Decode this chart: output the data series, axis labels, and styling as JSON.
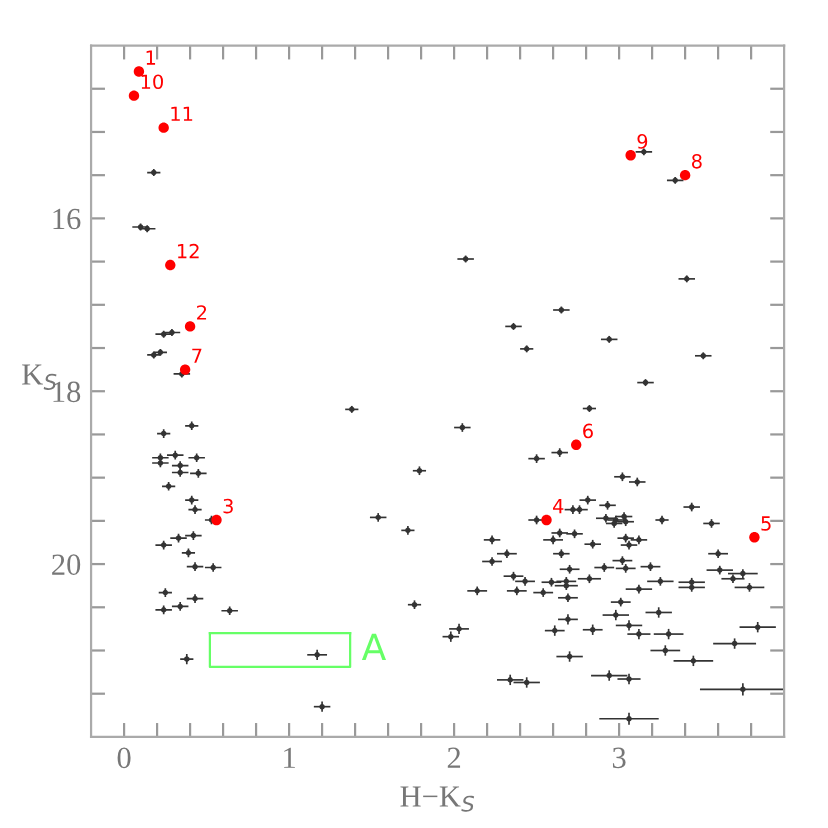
{
  "chart_data": {
    "type": "scatter",
    "xlabel": "H−K$_{S}$",
    "ylabel": "K$_{S}$",
    "xlim": [
      -0.2,
      4.0
    ],
    "ylim": [
      22,
      14
    ],
    "xticks": [
      {
        "value": 0,
        "label": "0"
      },
      {
        "value": 0.2,
        "label": null
      },
      {
        "value": 0.4,
        "label": null
      },
      {
        "value": 0.6,
        "label": null
      },
      {
        "value": 0.8,
        "label": null
      },
      {
        "value": 1,
        "label": "1"
      },
      {
        "value": 1.2,
        "label": null
      },
      {
        "value": 1.4,
        "label": null
      },
      {
        "value": 1.6,
        "label": null
      },
      {
        "value": 1.8,
        "label": null
      },
      {
        "value": 2,
        "label": "2"
      },
      {
        "value": 2.2,
        "label": null
      },
      {
        "value": 2.4,
        "label": null
      },
      {
        "value": 2.6,
        "label": null
      },
      {
        "value": 2.8,
        "label": null
      },
      {
        "value": 3,
        "label": "3"
      },
      {
        "value": 3.2,
        "label": null
      },
      {
        "value": 3.4,
        "label": null
      },
      {
        "value": 3.6,
        "label": null
      },
      {
        "value": 3.8,
        "label": null
      }
    ],
    "yticks": [
      {
        "value": 14.5,
        "label": null
      },
      {
        "value": 15,
        "label": null
      },
      {
        "value": 15.5,
        "label": null
      },
      {
        "value": 16,
        "label": "16"
      },
      {
        "value": 16.5,
        "label": null
      },
      {
        "value": 17,
        "label": null
      },
      {
        "value": 17.5,
        "label": null
      },
      {
        "value": 18,
        "label": "18"
      },
      {
        "value": 18.5,
        "label": null
      },
      {
        "value": 19,
        "label": null
      },
      {
        "value": 19.5,
        "label": null
      },
      {
        "value": 20,
        "label": "20"
      },
      {
        "value": 20.5,
        "label": null
      },
      {
        "value": 21,
        "label": null
      },
      {
        "value": 21.5,
        "label": null
      }
    ],
    "grid": false,
    "legend": false,
    "series": [
      {
        "color": "#333333",
        "marker": "circle",
        "x": [
          0.18,
          0.1,
          0.14,
          0.24,
          0.29,
          0.18,
          0.22,
          0.35,
          1.38,
          3.15,
          3.34,
          2.07,
          3.41,
          2.65,
          2.36,
          2.44,
          2.94,
          3.51,
          3.16,
          2.82,
          0.41,
          0.24,
          0.22,
          0.22,
          0.31,
          0.44,
          0.34,
          0.34,
          0.45,
          0.27,
          0.41,
          0.43,
          0.53,
          0.24,
          0.33,
          0.42,
          0.39,
          0.43,
          0.54,
          0.25,
          0.24,
          0.34,
          0.43,
          0.64,
          0.38,
          1.17,
          1.2,
          1.54,
          1.72,
          1.79,
          1.76,
          2.05,
          2.5,
          2.64,
          3.02,
          3.11,
          2.81,
          2.76,
          2.72,
          2.93,
          2.92,
          2.98,
          3.03,
          2.97,
          3.04,
          3.26,
          3.44,
          3.56,
          2.5,
          2.64,
          2.73,
          2.6,
          2.23,
          3.04,
          3.12,
          3.06,
          2.84,
          2.32,
          2.23,
          2.65,
          3.6,
          3.02,
          2.7,
          2.91,
          3.04,
          3.19,
          3.61,
          3.75,
          2.36,
          2.43,
          2.38,
          2.54,
          2.68,
          2.68,
          2.59,
          2.82,
          3.25,
          3.44,
          3.44,
          3.69,
          3.79,
          3.12,
          2.69,
          2.14,
          3.01,
          2.98,
          3.24,
          2.69,
          3.06,
          2.61,
          2.84,
          3.12,
          3.3,
          3.84,
          3.7,
          3.28,
          3.45,
          2.7,
          2.03,
          1.98,
          2.34,
          2.44,
          2.94,
          3.06,
          3.75,
          3.06
        ],
        "values": [
          15.47,
          16.1,
          16.12,
          17.34,
          17.32,
          17.58,
          17.55,
          17.8,
          18.21,
          15.23,
          15.56,
          16.47,
          16.7,
          17.06,
          17.25,
          17.51,
          17.4,
          17.59,
          17.9,
          18.2,
          18.4,
          18.49,
          18.77,
          18.83,
          18.74,
          18.77,
          18.86,
          18.94,
          18.95,
          19.1,
          19.26,
          19.37,
          19.49,
          19.78,
          19.7,
          19.67,
          19.87,
          20.03,
          20.04,
          20.33,
          20.53,
          20.49,
          20.4,
          20.54,
          21.1,
          21.05,
          21.65,
          19.46,
          19.61,
          18.92,
          20.47,
          18.42,
          18.78,
          18.71,
          18.99,
          19.05,
          19.26,
          19.37,
          19.37,
          19.32,
          19.47,
          19.49,
          19.45,
          19.53,
          19.51,
          19.49,
          19.34,
          19.53,
          19.49,
          19.64,
          19.65,
          19.72,
          19.72,
          19.7,
          19.72,
          19.78,
          19.77,
          19.88,
          19.97,
          19.88,
          19.88,
          19.96,
          20.06,
          20.04,
          20.05,
          20.03,
          20.07,
          20.11,
          20.14,
          20.2,
          20.31,
          20.33,
          20.2,
          20.25,
          20.21,
          20.17,
          20.2,
          20.21,
          20.27,
          20.17,
          20.27,
          20.29,
          20.39,
          20.31,
          20.44,
          20.59,
          20.56,
          20.64,
          20.71,
          20.77,
          20.76,
          20.81,
          20.81,
          20.73,
          20.92,
          21.0,
          21.12,
          21.07,
          20.75,
          20.84,
          21.34,
          21.37,
          21.29,
          21.33,
          21.45,
          21.79
        ],
        "xerrors": [
          0.04,
          0.05,
          0.05,
          0.05,
          0.05,
          0.04,
          0.04,
          0.05,
          0.04,
          0.05,
          0.05,
          0.05,
          0.05,
          0.05,
          0.05,
          0.04,
          0.05,
          0.05,
          0.05,
          0.04,
          0.04,
          0.04,
          0.05,
          0.05,
          0.05,
          0.05,
          0.05,
          0.05,
          0.05,
          0.04,
          0.04,
          0.04,
          0.04,
          0.05,
          0.05,
          0.05,
          0.04,
          0.05,
          0.05,
          0.04,
          0.05,
          0.05,
          0.05,
          0.05,
          0.04,
          0.06,
          0.05,
          0.05,
          0.04,
          0.04,
          0.04,
          0.05,
          0.05,
          0.05,
          0.05,
          0.05,
          0.05,
          0.05,
          0.05,
          0.05,
          0.06,
          0.05,
          0.05,
          0.05,
          0.05,
          0.04,
          0.05,
          0.05,
          0.05,
          0.05,
          0.05,
          0.06,
          0.05,
          0.05,
          0.05,
          0.05,
          0.05,
          0.06,
          0.06,
          0.05,
          0.06,
          0.06,
          0.06,
          0.06,
          0.06,
          0.06,
          0.08,
          0.09,
          0.06,
          0.06,
          0.06,
          0.06,
          0.06,
          0.07,
          0.06,
          0.07,
          0.08,
          0.08,
          0.08,
          0.07,
          0.09,
          0.08,
          0.06,
          0.06,
          0.06,
          0.08,
          0.08,
          0.06,
          0.08,
          0.06,
          0.06,
          0.07,
          0.09,
          0.11,
          0.13,
          0.09,
          0.12,
          0.08,
          0.06,
          0.05,
          0.08,
          0.08,
          0.11,
          0.07,
          0.26,
          0.18
        ],
        "errors": [
          0.04,
          0.04,
          0.04,
          0.04,
          0.04,
          0.04,
          0.04,
          0.04,
          0.04,
          0.04,
          0.04,
          0.04,
          0.04,
          0.04,
          0.04,
          0.04,
          0.04,
          0.04,
          0.04,
          0.04,
          0.05,
          0.05,
          0.05,
          0.05,
          0.05,
          0.05,
          0.05,
          0.05,
          0.05,
          0.05,
          0.05,
          0.05,
          0.05,
          0.05,
          0.05,
          0.05,
          0.05,
          0.05,
          0.05,
          0.05,
          0.05,
          0.05,
          0.05,
          0.05,
          0.06,
          0.06,
          0.06,
          0.05,
          0.05,
          0.05,
          0.05,
          0.05,
          0.05,
          0.05,
          0.05,
          0.05,
          0.05,
          0.05,
          0.05,
          0.05,
          0.05,
          0.05,
          0.05,
          0.05,
          0.05,
          0.05,
          0.05,
          0.05,
          0.05,
          0.05,
          0.05,
          0.05,
          0.05,
          0.05,
          0.05,
          0.05,
          0.05,
          0.05,
          0.05,
          0.05,
          0.05,
          0.05,
          0.05,
          0.05,
          0.05,
          0.05,
          0.05,
          0.05,
          0.05,
          0.05,
          0.05,
          0.05,
          0.05,
          0.05,
          0.05,
          0.05,
          0.05,
          0.05,
          0.05,
          0.05,
          0.05,
          0.05,
          0.05,
          0.05,
          0.05,
          0.06,
          0.06,
          0.06,
          0.06,
          0.06,
          0.06,
          0.06,
          0.06,
          0.06,
          0.06,
          0.06,
          0.06,
          0.06,
          0.06,
          0.06,
          0.06,
          0.06,
          0.06,
          0.06,
          0.07,
          0.07
        ]
      },
      {
        "color": "#ff0000",
        "marker": "circle",
        "x": [
          0.09,
          0.4,
          0.56,
          2.56,
          3.82,
          2.74,
          0.37,
          3.4,
          3.07,
          0.06,
          0.24,
          0.28
        ],
        "values": [
          14.3,
          17.25,
          19.49,
          19.49,
          19.69,
          18.62,
          17.75,
          15.5,
          15.27,
          14.58,
          14.95,
          16.54
        ]
      },
      {
        "type": "line",
        "color": "#66ff66",
        "marker": "none",
        "line_style": "solid",
        "x": [
          0.52,
          0.52,
          1.37,
          1.37
        ],
        "values": [
          20.8,
          21.19,
          21.19,
          20.8
        ]
      },
      {
        "type": "line",
        "color": "#66ff66",
        "marker": "none",
        "line_style": "solid",
        "x": [
          0.52,
          1.37
        ],
        "values": [
          20.8,
          20.8
        ]
      }
    ],
    "annotations": [
      {
        "text": "1",
        "x": 0.09,
        "y": 14.3
      },
      {
        "text": "2",
        "x": 0.4,
        "y": 17.25
      },
      {
        "text": "3",
        "x": 0.56,
        "y": 19.49
      },
      {
        "text": "4",
        "x": 2.56,
        "y": 19.49
      },
      {
        "text": "5",
        "x": 3.82,
        "y": 19.69
      },
      {
        "text": "6",
        "x": 2.74,
        "y": 18.62
      },
      {
        "text": "7",
        "x": 0.37,
        "y": 17.75
      },
      {
        "text": "8",
        "x": 3.4,
        "y": 15.5
      },
      {
        "text": "9",
        "x": 3.07,
        "y": 15.27
      },
      {
        "text": "10",
        "x": 0.06,
        "y": 14.58
      },
      {
        "text": "11",
        "x": 0.24,
        "y": 14.95
      },
      {
        "text": "12",
        "x": 0.28,
        "y": 16.54
      },
      "A"
    ]
  }
}
